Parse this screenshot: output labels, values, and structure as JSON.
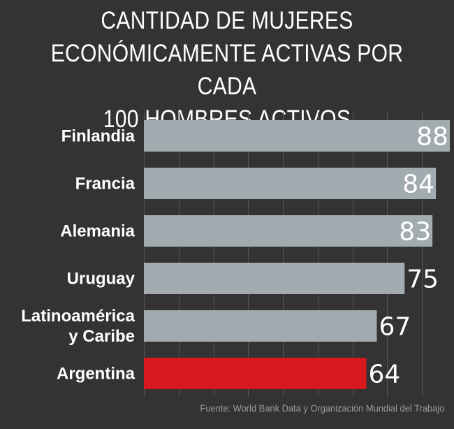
{
  "chart_data": {
    "type": "bar",
    "orientation": "horizontal",
    "title": [
      "CANTIDAD DE MUJERES",
      "ECONÓMICAMENTE ACTIVAS POR CADA",
      "100 HOMBRES ACTIVOS"
    ],
    "categories": [
      [
        "Finlandia"
      ],
      [
        "Francia"
      ],
      [
        "Alemania"
      ],
      [
        "Uruguay"
      ],
      [
        "Latinoamérica",
        "y Caribe"
      ],
      [
        "Argentina"
      ]
    ],
    "values": [
      88,
      84,
      83,
      75,
      67,
      64
    ],
    "highlight": "Argentina",
    "colors": {
      "default": "#a2abb0",
      "highlight": "#d7191f"
    },
    "xlim": [
      0,
      88
    ],
    "grid_step": 10,
    "grid": true,
    "source": "Fuente: World Bank Data y Organización Mundial del Trabajo"
  }
}
